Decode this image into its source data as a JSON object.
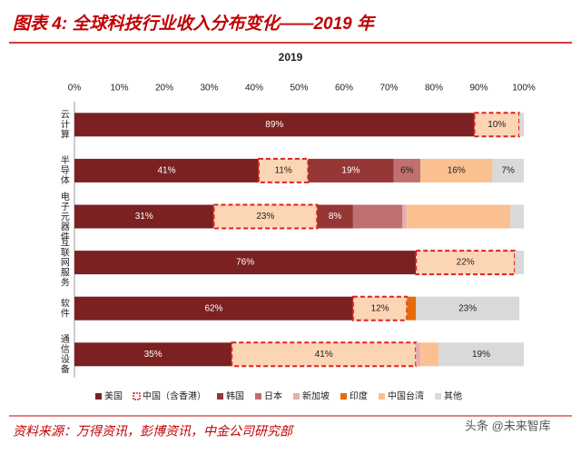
{
  "chart_data": {
    "type": "stacked_bar_horizontal",
    "title": "图表 4: 全球科技行业收入分布变化——2019 年",
    "subtitle": "2019",
    "source": "资料来源：万得资讯，彭博资讯，中金公司研究部",
    "watermark": "头条 @未来智库",
    "categories": [
      "云计算",
      "半导体",
      "电子元器件",
      "互联网服务",
      "软件",
      "通信设备"
    ],
    "xlim": [
      0,
      100
    ],
    "xticks": [
      {
        "value": 0,
        "label": "0%"
      },
      {
        "value": 10,
        "label": "10%"
      },
      {
        "value": 20,
        "label": "20%"
      },
      {
        "value": 30,
        "label": "30%"
      },
      {
        "value": 40,
        "label": "40%"
      },
      {
        "value": 50,
        "label": "50%"
      },
      {
        "value": 60,
        "label": "60%"
      },
      {
        "value": 70,
        "label": "70%"
      },
      {
        "value": 80,
        "label": "80%"
      },
      {
        "value": 90,
        "label": "90%"
      },
      {
        "value": 100,
        "label": "100%"
      }
    ],
    "legend": "bottom",
    "series": [
      {
        "name": "美国",
        "color": "#7b2121",
        "values": [
          89,
          41,
          31,
          76,
          62,
          35
        ],
        "value_labels": [
          "89%",
          "41%",
          "31%",
          "76%",
          "62%",
          "35%"
        ]
      },
      {
        "name": "中国（含香港）",
        "color": "#fcd5b4",
        "highlight": "#e02020",
        "values": [
          10,
          11,
          23,
          22,
          12,
          41
        ],
        "value_labels": [
          "10%",
          "11%",
          "23%",
          "22%",
          "12%",
          "41%"
        ]
      },
      {
        "name": "韩国",
        "color": "#953735",
        "values": [
          0,
          19,
          8,
          0,
          0,
          0
        ],
        "value_labels": [
          null,
          "19%",
          "8%",
          null,
          null,
          null
        ]
      },
      {
        "name": "日本",
        "color": "#c07070",
        "values": [
          0,
          6,
          11,
          0,
          0,
          0
        ],
        "value_labels": [
          null,
          "6%",
          null,
          null,
          null,
          null
        ]
      },
      {
        "name": "新加坡",
        "color": "#e6b0b0",
        "values": [
          0,
          0,
          1,
          0,
          0,
          1
        ],
        "value_labels": [
          null,
          null,
          null,
          null,
          null,
          null
        ]
      },
      {
        "name": "印度",
        "color": "#e46c0a",
        "values": [
          0,
          0,
          0,
          0,
          2,
          0
        ],
        "value_labels": [
          null,
          null,
          null,
          null,
          null,
          null
        ]
      },
      {
        "name": "中国台湾",
        "color": "#fac090",
        "values": [
          0,
          16,
          23,
          0,
          0,
          4
        ],
        "value_labels": [
          null,
          "16%",
          null,
          null,
          null,
          null
        ]
      },
      {
        "name": "其他",
        "color": "#d9d9d9",
        "values": [
          1,
          7,
          3,
          2,
          23,
          19
        ],
        "value_labels": [
          null,
          "7%",
          null,
          null,
          "23%",
          "19%"
        ]
      }
    ]
  }
}
